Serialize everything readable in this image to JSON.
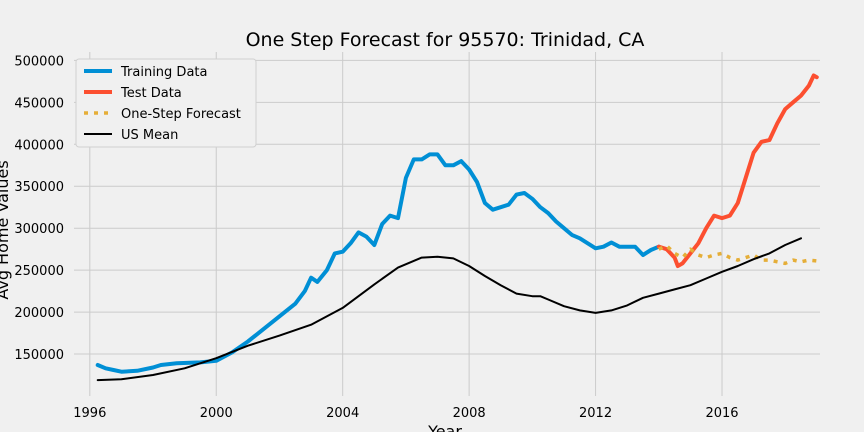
{
  "chart_data": {
    "type": "line",
    "title": "One Step Forecast for 95570: Trinidad, CA",
    "xlabel": "Year",
    "ylabel": "Avg Home Values",
    "xlim": [
      1995.5,
      2019.1
    ],
    "ylim": [
      100000,
      510000
    ],
    "x_ticks": [
      1996,
      2000,
      2004,
      2008,
      2012,
      2016
    ],
    "y_ticks": [
      150000,
      200000,
      250000,
      300000,
      350000,
      400000,
      450000,
      500000
    ],
    "grid": true,
    "legend_position": "top-left",
    "background": "#f0f0f0",
    "series": [
      {
        "name": "Training Data",
        "color": "#008fd5",
        "style": "solid",
        "points": [
          [
            1996.25,
            137000
          ],
          [
            1996.5,
            133000
          ],
          [
            1996.75,
            131000
          ],
          [
            1997.0,
            129000
          ],
          [
            1997.5,
            130000
          ],
          [
            1998.0,
            134000
          ],
          [
            1998.25,
            137000
          ],
          [
            1998.75,
            139000
          ],
          [
            1999.5,
            140000
          ],
          [
            2000.0,
            142000
          ],
          [
            2000.5,
            152000
          ],
          [
            2001.0,
            165000
          ],
          [
            2001.5,
            180000
          ],
          [
            2002.0,
            195000
          ],
          [
            2002.5,
            210000
          ],
          [
            2002.8,
            225000
          ],
          [
            2003.0,
            241000
          ],
          [
            2003.2,
            236000
          ],
          [
            2003.5,
            250000
          ],
          [
            2003.75,
            270000
          ],
          [
            2004.0,
            272000
          ],
          [
            2004.25,
            282000
          ],
          [
            2004.5,
            295000
          ],
          [
            2004.75,
            290000
          ],
          [
            2005.0,
            280000
          ],
          [
            2005.25,
            305000
          ],
          [
            2005.5,
            315000
          ],
          [
            2005.75,
            312000
          ],
          [
            2006.0,
            360000
          ],
          [
            2006.25,
            382000
          ],
          [
            2006.5,
            382000
          ],
          [
            2006.75,
            388000
          ],
          [
            2007.0,
            388000
          ],
          [
            2007.25,
            375000
          ],
          [
            2007.5,
            375000
          ],
          [
            2007.75,
            380000
          ],
          [
            2008.0,
            370000
          ],
          [
            2008.25,
            355000
          ],
          [
            2008.5,
            330000
          ],
          [
            2008.75,
            322000
          ],
          [
            2009.0,
            325000
          ],
          [
            2009.25,
            328000
          ],
          [
            2009.5,
            340000
          ],
          [
            2009.75,
            342000
          ],
          [
            2010.0,
            335000
          ],
          [
            2010.25,
            325000
          ],
          [
            2010.5,
            318000
          ],
          [
            2010.75,
            308000
          ],
          [
            2011.0,
            300000
          ],
          [
            2011.25,
            292000
          ],
          [
            2011.5,
            288000
          ],
          [
            2011.75,
            282000
          ],
          [
            2012.0,
            276000
          ],
          [
            2012.25,
            278000
          ],
          [
            2012.5,
            283000
          ],
          [
            2012.75,
            278000
          ],
          [
            2013.0,
            278000
          ],
          [
            2013.25,
            278000
          ],
          [
            2013.5,
            268000
          ],
          [
            2013.75,
            274000
          ],
          [
            2014.0,
            278000
          ]
        ]
      },
      {
        "name": "Test Data",
        "color": "#fc4f30",
        "style": "solid",
        "points": [
          [
            2014.0,
            278000
          ],
          [
            2014.25,
            275000
          ],
          [
            2014.5,
            265000
          ],
          [
            2014.6,
            255000
          ],
          [
            2014.75,
            258000
          ],
          [
            2015.0,
            270000
          ],
          [
            2015.25,
            282000
          ],
          [
            2015.5,
            300000
          ],
          [
            2015.75,
            315000
          ],
          [
            2016.0,
            312000
          ],
          [
            2016.25,
            315000
          ],
          [
            2016.5,
            330000
          ],
          [
            2016.75,
            360000
          ],
          [
            2017.0,
            390000
          ],
          [
            2017.25,
            403000
          ],
          [
            2017.5,
            405000
          ],
          [
            2017.75,
            425000
          ],
          [
            2018.0,
            442000
          ],
          [
            2018.25,
            450000
          ],
          [
            2018.5,
            458000
          ],
          [
            2018.75,
            470000
          ],
          [
            2018.9,
            482000
          ],
          [
            2019.0,
            480000
          ]
        ]
      },
      {
        "name": "One-Step Forecast",
        "color": "#e5ae38",
        "style": "dotted",
        "points": [
          [
            2014.0,
            275000
          ],
          [
            2014.25,
            279000
          ],
          [
            2014.5,
            270000
          ],
          [
            2014.75,
            265000
          ],
          [
            2015.0,
            275000
          ],
          [
            2015.25,
            268000
          ],
          [
            2015.5,
            265000
          ],
          [
            2015.75,
            268000
          ],
          [
            2016.0,
            270000
          ],
          [
            2016.25,
            265000
          ],
          [
            2016.5,
            262000
          ],
          [
            2016.75,
            265000
          ],
          [
            2017.0,
            268000
          ],
          [
            2017.25,
            262000
          ],
          [
            2017.5,
            262000
          ],
          [
            2017.75,
            260000
          ],
          [
            2018.0,
            258000
          ],
          [
            2018.25,
            262000
          ],
          [
            2018.5,
            260000
          ],
          [
            2018.75,
            262000
          ],
          [
            2019.0,
            261000
          ]
        ]
      },
      {
        "name": "US Mean",
        "color": "#000000",
        "style": "solid",
        "points": [
          [
            1996.25,
            119000
          ],
          [
            1997.0,
            120000
          ],
          [
            1998.0,
            125000
          ],
          [
            1999.0,
            133000
          ],
          [
            2000.0,
            145000
          ],
          [
            2001.0,
            160000
          ],
          [
            2002.0,
            172000
          ],
          [
            2003.0,
            185000
          ],
          [
            2004.0,
            205000
          ],
          [
            2005.0,
            233000
          ],
          [
            2005.75,
            253000
          ],
          [
            2006.5,
            265000
          ],
          [
            2007.0,
            266000
          ],
          [
            2007.5,
            264000
          ],
          [
            2008.0,
            255000
          ],
          [
            2008.5,
            243000
          ],
          [
            2009.0,
            232000
          ],
          [
            2009.5,
            222000
          ],
          [
            2010.0,
            219000
          ],
          [
            2010.25,
            219000
          ],
          [
            2010.5,
            215000
          ],
          [
            2011.0,
            207000
          ],
          [
            2011.5,
            202000
          ],
          [
            2012.0,
            199000
          ],
          [
            2012.5,
            202000
          ],
          [
            2013.0,
            208000
          ],
          [
            2013.5,
            217000
          ],
          [
            2014.0,
            222000
          ],
          [
            2014.5,
            227000
          ],
          [
            2015.0,
            232000
          ],
          [
            2015.5,
            240000
          ],
          [
            2016.0,
            248000
          ],
          [
            2016.5,
            255000
          ],
          [
            2017.0,
            263000
          ],
          [
            2017.5,
            270000
          ],
          [
            2018.0,
            280000
          ],
          [
            2018.5,
            288000
          ]
        ]
      }
    ]
  }
}
